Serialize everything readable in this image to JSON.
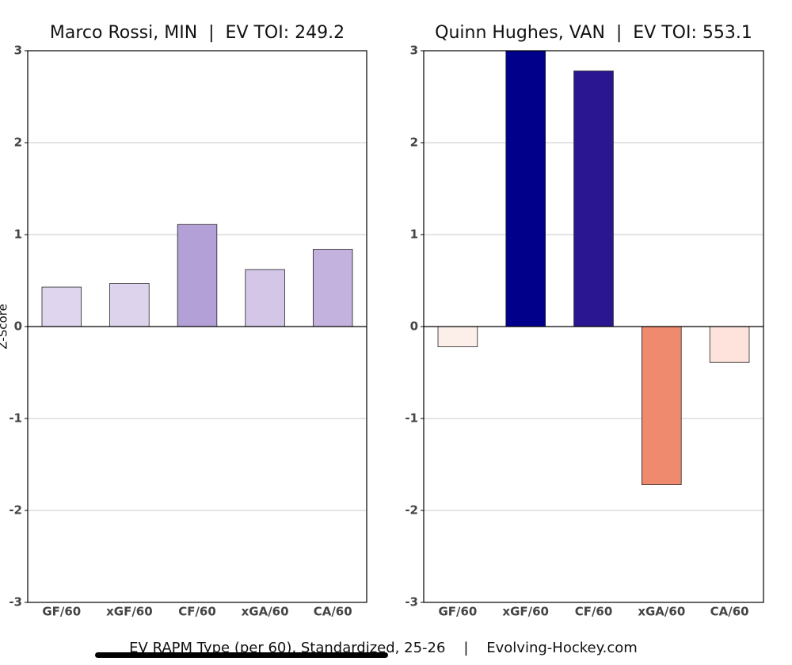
{
  "chart_data": [
    {
      "type": "bar",
      "title": "Marco Rossi, MIN  |  EV TOI: 249.2",
      "ylabel": "Z-Score",
      "categories": [
        "GF/60",
        "xGF/60",
        "CF/60",
        "xGA/60",
        "CA/60"
      ],
      "values": [
        0.43,
        0.47,
        1.11,
        0.62,
        0.84
      ],
      "colors": [
        "#dfd5ee",
        "#ddd3ec",
        "#b3a0d6",
        "#d4c6e6",
        "#c4b2de"
      ],
      "ylim": [
        -3,
        3
      ],
      "yticks": [
        -3,
        -2,
        -1,
        0,
        1,
        2,
        3
      ],
      "grid": true
    },
    {
      "type": "bar",
      "title": "Quinn Hughes, VAN  |  EV TOI: 553.1",
      "categories": [
        "GF/60",
        "xGF/60",
        "CF/60",
        "xGA/60",
        "CA/60"
      ],
      "values": [
        -0.22,
        3.0,
        2.78,
        -1.72,
        -0.39
      ],
      "colors": [
        "#fceee9",
        "#00008b",
        "#2a1690",
        "#f08a6e",
        "#fde3dc"
      ],
      "ylim": [
        -3,
        3
      ],
      "yticks": [
        -3,
        -2,
        -1,
        0,
        1,
        2,
        3
      ],
      "grid": true
    }
  ],
  "caption": "EV RAPM Type (per 60), Standardized, 25-26    |    Evolving-Hockey.com"
}
